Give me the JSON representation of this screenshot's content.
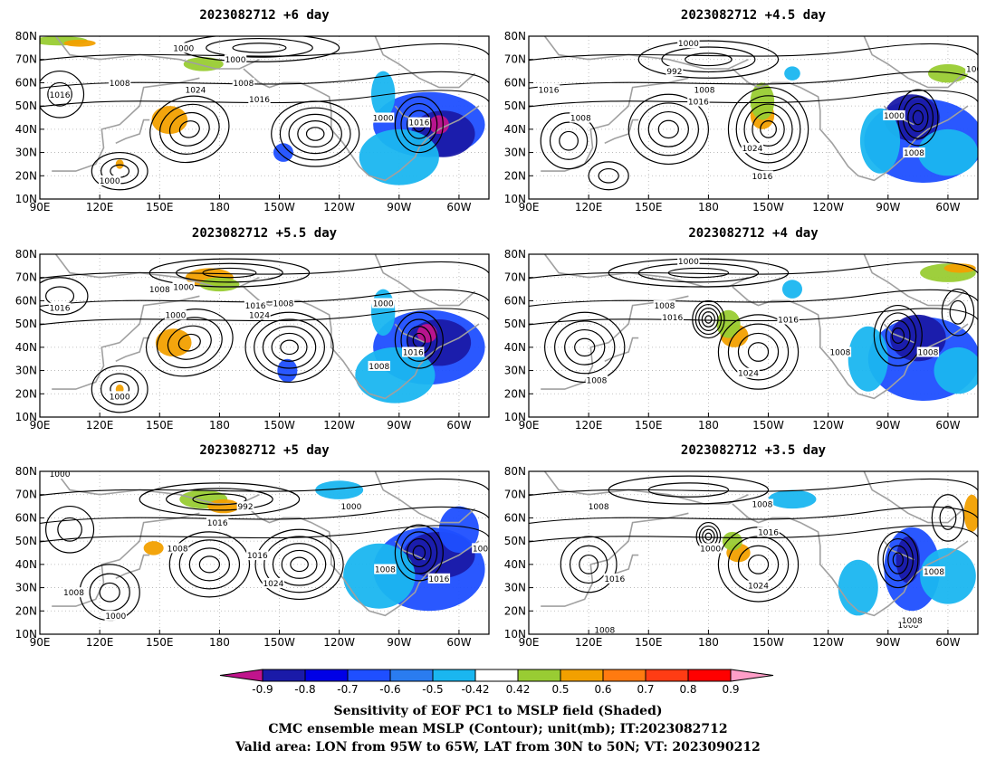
{
  "chart_data": {
    "type": "panel-maps",
    "panels": [
      {
        "title": "2023082712  +6 day",
        "contour_labels": [
          "1000",
          "1008",
          "1016",
          "1024",
          "1000",
          "1016",
          "1008",
          "1000",
          "1016",
          "1000"
        ]
      },
      {
        "title": "2023082712  +4.5 day",
        "contour_labels": [
          "1000",
          "992",
          "1008",
          "1016",
          "1008",
          "1016",
          "1024",
          "1000",
          "1008",
          "1016",
          "100"
        ]
      },
      {
        "title": "2023082712  +5.5 day",
        "contour_labels": [
          "1008",
          "1016",
          "1000",
          "1000",
          "1008",
          "1016",
          "1024",
          "1000",
          "1008",
          "1016",
          "1000"
        ]
      },
      {
        "title": "2023082712  +4 day",
        "contour_labels": [
          "1000",
          "1008",
          "1016",
          "1016",
          "1008",
          "1024",
          "1008",
          "1008"
        ]
      },
      {
        "title": "2023082712  +5 day",
        "contour_labels": [
          "1000",
          "992",
          "1016",
          "1000",
          "1016",
          "1008",
          "1008",
          "1024",
          "1008",
          "1016",
          "1008",
          "1000"
        ]
      },
      {
        "title": "2023082712  +3.5 day",
        "contour_labels": [
          "1008",
          "1008",
          "1000",
          "1016",
          "1016",
          "1024",
          "1008",
          "1008",
          "1008",
          "1008"
        ]
      }
    ],
    "x_ticks": [
      "90E",
      "120E",
      "150E",
      "180",
      "150W",
      "120W",
      "90W",
      "60W"
    ],
    "y_ticks": [
      "10N",
      "20N",
      "30N",
      "40N",
      "50N",
      "60N",
      "70N",
      "80N"
    ],
    "x_range_lon_east": [
      90,
      315
    ],
    "y_range_lat": [
      10,
      80
    ],
    "colorbar": {
      "levels": [
        "-0.9",
        "-0.8",
        "-0.7",
        "-0.6",
        "-0.5",
        "-0.42",
        "0.42",
        "0.5",
        "0.6",
        "0.7",
        "0.8",
        "0.9"
      ],
      "colors": [
        "#1a1aa8",
        "#0000e6",
        "#1f4fff",
        "#2a7cf0",
        "#1ab6f0",
        "#ffffff",
        "#99cc33",
        "#f2a000",
        "#ff7a10",
        "#ff3c14",
        "#ff0000"
      ],
      "low_end_color": "#c0148c",
      "high_end_color": "#ff9ec8"
    }
  },
  "colors": {
    "contour": "#000000",
    "coast": "#a0a0a0",
    "grid": "#b0b0b0",
    "neg_dark": "#1a1aa8",
    "neg_mid": "#1f4fff",
    "neg_light": "#1ab6f0",
    "pos_green": "#99cc33",
    "pos_orange": "#f2a000",
    "magenta": "#c0148c"
  },
  "captions": {
    "line1": "Sensitivity of EOF PC1 to MSLP field (Shaded)",
    "line2": "CMC ensemble mean MSLP (Contour); unit(mb); IT:2023082712",
    "line3": "Valid area: LON from 95W to 65W, LAT from 30N to 50N; VT: 2023090212"
  }
}
